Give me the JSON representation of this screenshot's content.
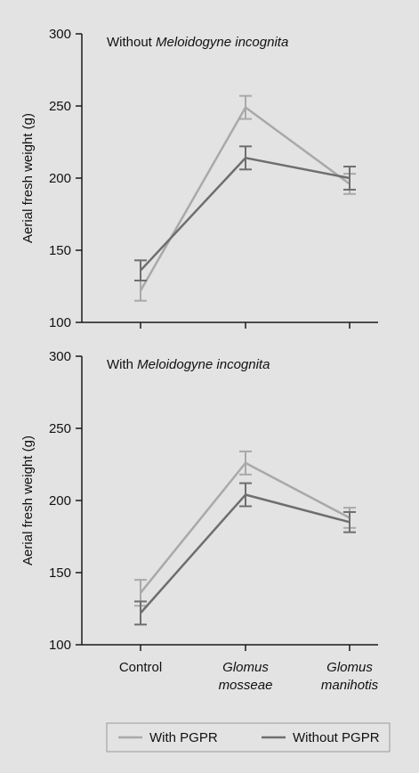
{
  "colors": {
    "background": "#e3e3e3",
    "with_pgpr": "#a9a9a9",
    "without_pgpr": "#6e6e6e",
    "axis": "#1a1a1a"
  },
  "legend": {
    "items": [
      {
        "key": "with",
        "label": "With PGPR"
      },
      {
        "key": "without",
        "label": "Without PGPR"
      }
    ]
  },
  "chart_data": [
    {
      "type": "line",
      "title_prefix": "Without ",
      "title_italic": "Meloidogyne incognita",
      "ylabel": "Aerial fresh weight (g)",
      "ylim": [
        100,
        300
      ],
      "yticks": [
        100,
        150,
        200,
        250,
        300
      ],
      "categories": [
        "Control",
        "Glomus mosseae",
        "Glomus manihotis"
      ],
      "series": [
        {
          "key": "with",
          "name": "With PGPR",
          "values": [
            122,
            249,
            196
          ],
          "errors": [
            7,
            8,
            7
          ]
        },
        {
          "key": "without",
          "name": "Without PGPR",
          "values": [
            136,
            214,
            200
          ],
          "errors": [
            7,
            8,
            8
          ]
        }
      ]
    },
    {
      "type": "line",
      "title_prefix": "With ",
      "title_italic": "Meloidogyne incognita",
      "ylabel": "Aerial fresh weight (g)",
      "ylim": [
        100,
        300
      ],
      "yticks": [
        100,
        150,
        200,
        250,
        300
      ],
      "categories": [
        "Control",
        "Glomus mosseae",
        "Glomus manihotis"
      ],
      "category_lines": [
        [
          "Control"
        ],
        [
          "Glomus",
          "mosseae"
        ],
        [
          "Glomus",
          "manihotis"
        ]
      ],
      "category_italic": [
        false,
        true,
        true
      ],
      "series": [
        {
          "key": "with",
          "name": "With PGPR",
          "values": [
            136,
            226,
            188
          ],
          "errors": [
            9,
            8,
            7
          ]
        },
        {
          "key": "without",
          "name": "Without PGPR",
          "values": [
            122,
            204,
            185
          ],
          "errors": [
            8,
            8,
            7
          ]
        }
      ]
    }
  ]
}
